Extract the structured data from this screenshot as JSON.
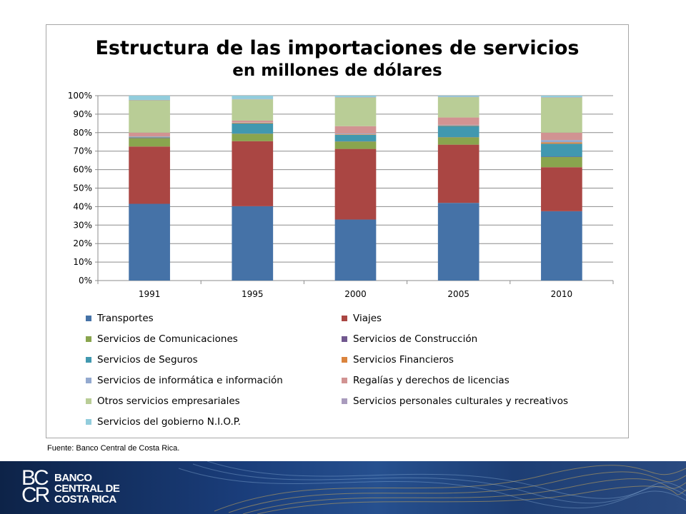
{
  "chart_data": {
    "type": "bar",
    "stacked": true,
    "percent": true,
    "title": "Estructura de las importaciones de servicios",
    "subtitle": "en millones de dólares",
    "categories": [
      "1991",
      "1995",
      "2000",
      "2005",
      "2010"
    ],
    "y_ticks": [
      "0%",
      "10%",
      "20%",
      "30%",
      "40%",
      "50%",
      "60%",
      "70%",
      "80%",
      "90%",
      "100%"
    ],
    "ylim": [
      0,
      100
    ],
    "grid": true,
    "legend_position": "bottom",
    "series": [
      {
        "name": "Transportes",
        "color": "#4572a7",
        "values": [
          41.5,
          40.2,
          33.0,
          42.0,
          37.5
        ]
      },
      {
        "name": "Viajes",
        "color": "#aa4643",
        "values": [
          31.0,
          35.2,
          38.2,
          31.5,
          23.8
        ]
      },
      {
        "name": "Servicios de Comunicaciones",
        "color": "#89a54e",
        "values": [
          4.5,
          4.0,
          4.0,
          4.0,
          5.5
        ]
      },
      {
        "name": "Servicios de Construcción",
        "color": "#71588f",
        "values": [
          0.2,
          0.1,
          0.1,
          0.1,
          0.2
        ]
      },
      {
        "name": "Servicios de Seguros",
        "color": "#4198af",
        "values": [
          0.3,
          5.5,
          3.5,
          6.0,
          7.0
        ]
      },
      {
        "name": "Servicios Financieros",
        "color": "#db843d",
        "values": [
          0.2,
          0.4,
          0.3,
          0.3,
          0.8
        ]
      },
      {
        "name": "Servicios de informática e información",
        "color": "#93a9cf",
        "values": [
          0.3,
          0.2,
          0.4,
          0.3,
          1.2
        ]
      },
      {
        "name": "Regalías y derechos de licencias",
        "color": "#d19392",
        "values": [
          2.0,
          0.9,
          4.0,
          4.0,
          4.0
        ]
      },
      {
        "name": "Otros servicios empresariales",
        "color": "#b9cd96",
        "values": [
          17.5,
          11.5,
          15.5,
          11.0,
          19.0
        ]
      },
      {
        "name": "Servicios personales culturales y recreativos",
        "color": "#a99bbd",
        "values": [
          0.2,
          0.2,
          0.2,
          0.2,
          0.2
        ]
      },
      {
        "name": "Servicios del gobierno N.I.O.P.",
        "color": "#92cddc",
        "values": [
          2.3,
          1.8,
          0.8,
          0.6,
          0.8
        ]
      }
    ]
  },
  "source": "Fuente: Banco Central de Costa Rica.",
  "footer": {
    "logo_mark_top": "BC",
    "logo_mark_bottom": "CR",
    "bank_line1": "BANCO",
    "bank_line2": "CENTRAL DE",
    "bank_line3": "COSTA RICA"
  }
}
